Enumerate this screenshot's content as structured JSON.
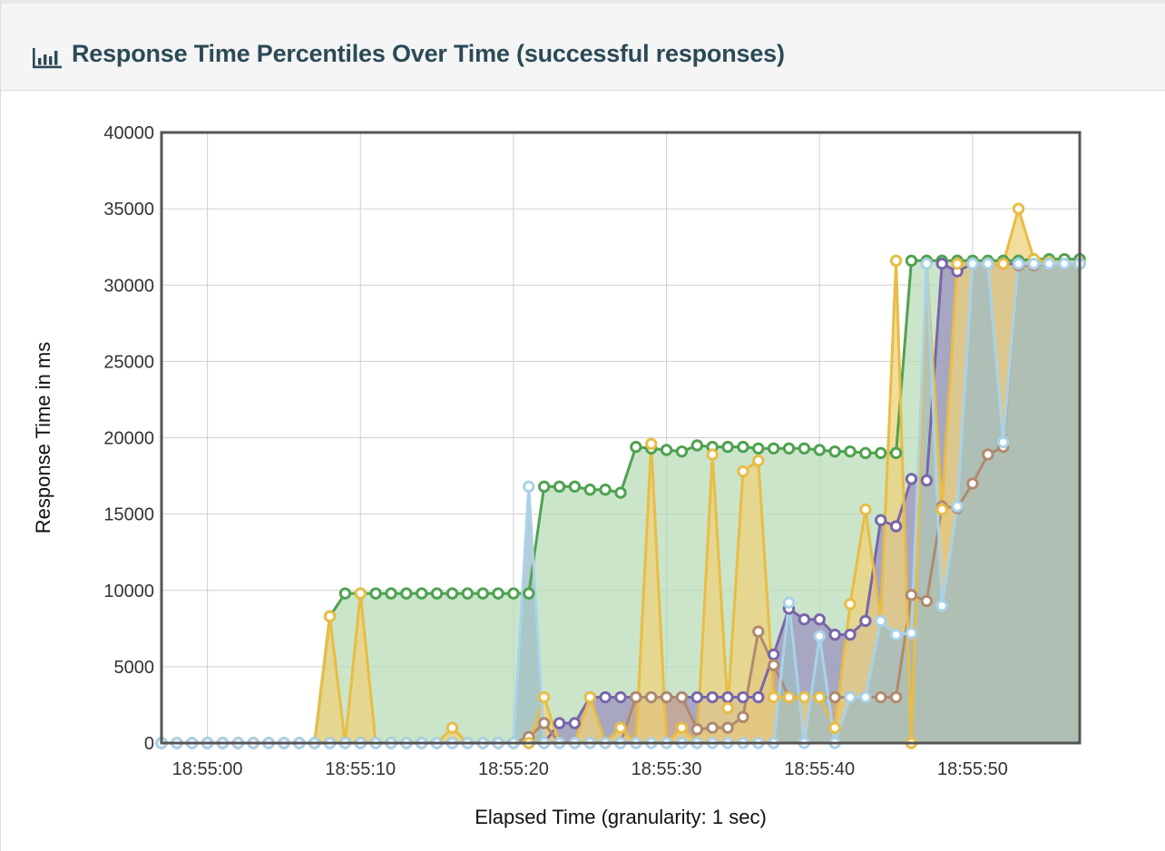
{
  "panel": {
    "title": "Response Time Percentiles Over Time (successful responses)",
    "title_icon": "bar-chart-icon"
  },
  "chart_data": {
    "type": "area",
    "title": "Response Time Percentiles Over Time (successful responses)",
    "xlabel": "Elapsed Time (granularity: 1 sec)",
    "ylabel": "Response Time in ms",
    "ylim": [
      0,
      40000
    ],
    "yticks": [
      0,
      5000,
      10000,
      15000,
      20000,
      25000,
      30000,
      35000,
      40000
    ],
    "xlim": [
      "18:54:57",
      "18:55:57"
    ],
    "xticks": [
      "18:55:00",
      "18:55:10",
      "18:55:20",
      "18:55:30",
      "18:55:40",
      "18:55:50"
    ],
    "grid": true,
    "legend": "none",
    "x": [
      "18:54:57",
      "18:54:58",
      "18:54:59",
      "18:55:00",
      "18:55:01",
      "18:55:02",
      "18:55:03",
      "18:55:04",
      "18:55:05",
      "18:55:06",
      "18:55:07",
      "18:55:08",
      "18:55:09",
      "18:55:10",
      "18:55:11",
      "18:55:12",
      "18:55:13",
      "18:55:14",
      "18:55:15",
      "18:55:16",
      "18:55:17",
      "18:55:18",
      "18:55:19",
      "18:55:20",
      "18:55:21",
      "18:55:22",
      "18:55:23",
      "18:55:24",
      "18:55:25",
      "18:55:26",
      "18:55:27",
      "18:55:28",
      "18:55:29",
      "18:55:30",
      "18:55:31",
      "18:55:32",
      "18:55:33",
      "18:55:34",
      "18:55:35",
      "18:55:36",
      "18:55:37",
      "18:55:38",
      "18:55:39",
      "18:55:40",
      "18:55:41",
      "18:55:42",
      "18:55:43",
      "18:55:44",
      "18:55:45",
      "18:55:46",
      "18:55:47",
      "18:55:48",
      "18:55:49",
      "18:55:50",
      "18:55:51",
      "18:55:52",
      "18:55:53",
      "18:55:54",
      "18:55:55",
      "18:55:56",
      "18:55:57"
    ],
    "series": [
      {
        "color": "#4fa24f",
        "fill": "#b9dcb9",
        "values": [
          0,
          0,
          0,
          0,
          0,
          0,
          0,
          0,
          0,
          0,
          0,
          8300,
          9800,
          9800,
          9800,
          9800,
          9800,
          9800,
          9800,
          9800,
          9800,
          9800,
          9800,
          9800,
          9800,
          16800,
          16800,
          16800,
          16600,
          16600,
          16400,
          19400,
          19300,
          19200,
          19100,
          19500,
          19400,
          19400,
          19400,
          19300,
          19300,
          19300,
          19300,
          19200,
          19100,
          19100,
          19000,
          19000,
          19000,
          31600,
          31600,
          31600,
          31600,
          31600,
          31600,
          31600,
          31600,
          31700,
          31700,
          31700,
          31700
        ]
      },
      {
        "color": "#7866ab",
        "fill": "#9c91bd",
        "values": [
          0,
          0,
          0,
          0,
          0,
          0,
          0,
          0,
          0,
          0,
          0,
          0,
          0,
          0,
          0,
          0,
          0,
          0,
          0,
          0,
          0,
          0,
          0,
          0,
          0,
          0,
          1300,
          1300,
          3000,
          3000,
          3000,
          3000,
          3000,
          3000,
          3000,
          3000,
          3000,
          3000,
          3000,
          3000,
          5800,
          8800,
          8100,
          8100,
          7100,
          7100,
          8000,
          14600,
          14200,
          17300,
          17200,
          31400,
          30900,
          31400,
          31400,
          31400,
          31400,
          31400,
          31400,
          31400,
          31400
        ]
      },
      {
        "color": "#b08a6e",
        "fill": "#c9ab8f",
        "values": [
          0,
          0,
          0,
          0,
          0,
          0,
          0,
          0,
          0,
          0,
          0,
          0,
          0,
          0,
          0,
          0,
          0,
          0,
          0,
          0,
          0,
          0,
          0,
          0,
          400,
          1300,
          0,
          0,
          0,
          0,
          0,
          3000,
          3000,
          3000,
          3000,
          900,
          1000,
          1000,
          1700,
          7300,
          5100,
          3000,
          3000,
          3000,
          3000,
          3000,
          3000,
          3000,
          3000,
          9700,
          9300,
          15500,
          15400,
          17000,
          18900,
          19400,
          31300,
          31300,
          31400,
          31400,
          31400
        ]
      },
      {
        "color": "#e8bd45",
        "fill": "#edd17c",
        "values": [
          0,
          0,
          0,
          0,
          0,
          0,
          0,
          0,
          0,
          0,
          0,
          8300,
          0,
          9800,
          0,
          0,
          0,
          0,
          0,
          1000,
          0,
          0,
          0,
          0,
          0,
          3000,
          0,
          0,
          3000,
          0,
          1000,
          0,
          19600,
          0,
          1000,
          0,
          18900,
          2300,
          17800,
          18500,
          3000,
          3000,
          3000,
          3000,
          1000,
          9100,
          15300,
          8000,
          31600,
          0,
          31400,
          15300,
          31400,
          31400,
          31400,
          31400,
          35000,
          31700,
          31500,
          31400,
          31400
        ]
      },
      {
        "color": "#a9d2ea",
        "fill": "#9fbcc4",
        "values": [
          0,
          0,
          0,
          0,
          0,
          0,
          0,
          0,
          0,
          0,
          0,
          0,
          0,
          0,
          0,
          0,
          0,
          0,
          0,
          0,
          0,
          0,
          0,
          0,
          16800,
          0,
          0,
          0,
          0,
          0,
          0,
          0,
          0,
          0,
          0,
          0,
          0,
          0,
          0,
          0,
          0,
          9200,
          0,
          7000,
          0,
          3000,
          3000,
          8000,
          7100,
          7200,
          31400,
          9000,
          15500,
          31400,
          31400,
          19700,
          31400,
          31400,
          31400,
          31400,
          31400
        ]
      }
    ]
  }
}
